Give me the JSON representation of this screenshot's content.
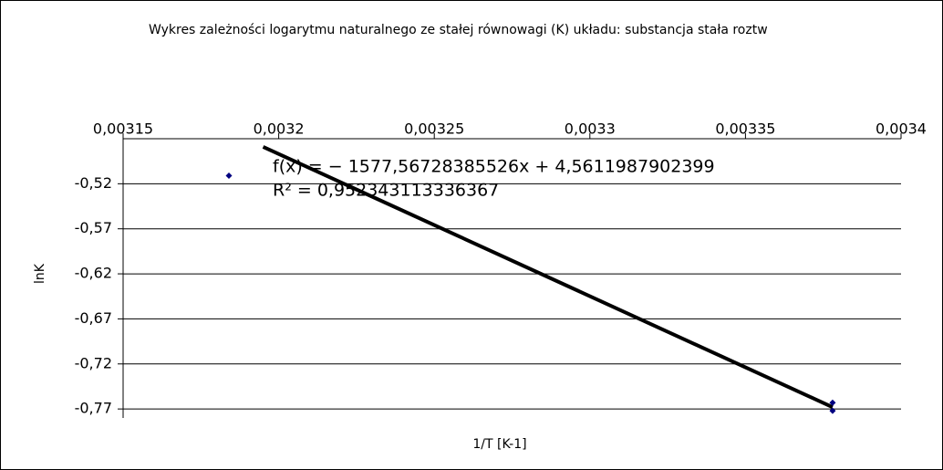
{
  "chart_data": {
    "type": "scatter",
    "title": "Wykres zależności  logarytmu naturalnego ze stałej równowagi (K) układu: substancja stała  roztw",
    "x_label": "1/T [K-1]",
    "y_label": "lnK",
    "series": [
      {
        "name": "lnK",
        "color": "#000080",
        "x": [
          0.003184,
          0.003378,
          0.003378
        ],
        "values": [
          -0.511,
          -0.763,
          -0.772
        ]
      }
    ],
    "trendline": {
      "color": "#000000",
      "x": [
        0.003195,
        0.003378
      ],
      "values": [
        -0.479,
        -0.768
      ],
      "equation": "f(x) = − 1577,56728385526x + 4,5611987902399",
      "r_squared": "R² = 0,952343113336367"
    },
    "xlim": [
      0.00315,
      0.0034
    ],
    "xticks": [
      {
        "value": 0.00315,
        "label": "0,00315"
      },
      {
        "value": 0.0032,
        "label": "0,0032"
      },
      {
        "value": 0.00325,
        "label": "0,00325"
      },
      {
        "value": 0.0033,
        "label": "0,0033"
      },
      {
        "value": 0.00335,
        "label": "0,00335"
      },
      {
        "value": 0.0034,
        "label": "0,0034"
      }
    ],
    "ylim": [
      -0.78,
      -0.47
    ],
    "yticks": [
      {
        "value": -0.52,
        "label": "-0,52"
      },
      {
        "value": -0.57,
        "label": "-0,57"
      },
      {
        "value": -0.62,
        "label": "-0,62"
      },
      {
        "value": -0.67,
        "label": "-0,67"
      },
      {
        "value": -0.72,
        "label": "-0,72"
      },
      {
        "value": -0.77,
        "label": "-0,77"
      }
    ],
    "grid": true
  }
}
